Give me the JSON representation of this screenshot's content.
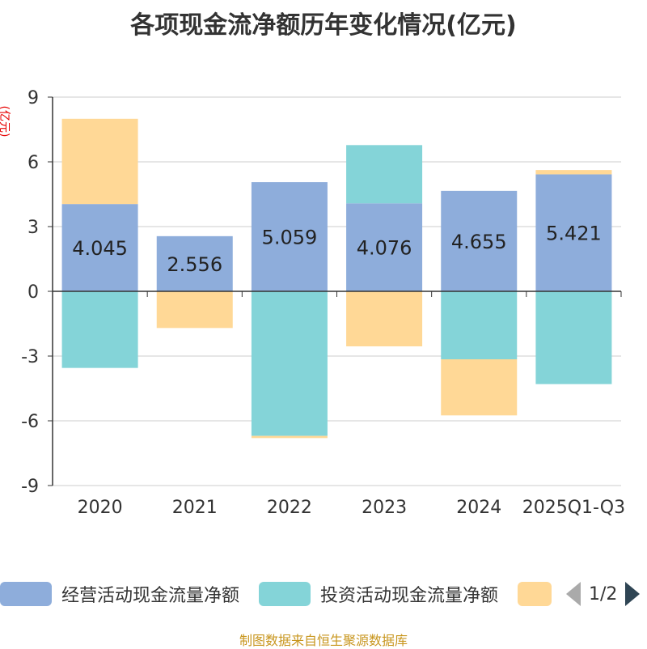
{
  "chart_data": {
    "type": "bar",
    "stacked": true,
    "title": "各项现金流净额历年变化情况(亿元)",
    "ylabel": "(亿元)",
    "xlabel": "",
    "ylim": [
      -9,
      9
    ],
    "yticks": [
      -9,
      -6,
      -3,
      0,
      3,
      6,
      9
    ],
    "ytick_labels": [
      "-9",
      "-6",
      "-3",
      "0",
      "3",
      "6",
      "9"
    ],
    "categories": [
      "2020",
      "2021",
      "2022",
      "2023",
      "2024",
      "2025Q1-Q3"
    ],
    "series": [
      {
        "name": "经营活动现金流量净额",
        "color": "#8eaddb",
        "values": [
          4.045,
          2.556,
          5.059,
          4.076,
          4.655,
          5.421
        ],
        "labels": [
          "4.045",
          "2.556",
          "5.059",
          "4.076",
          "4.655",
          "5.421"
        ]
      },
      {
        "name": "投资活动现金流量净额",
        "color": "#84d4d8",
        "values": [
          -3.55,
          0,
          -6.7,
          2.7,
          -3.15,
          -4.3
        ]
      },
      {
        "name": "",
        "color": "#ffd896",
        "values": [
          3.95,
          -1.7,
          -0.1,
          -2.55,
          -2.6,
          0.2
        ]
      }
    ],
    "legend": {
      "position": "bottom",
      "page": "1/2"
    }
  },
  "source": "制图数据来自恒生聚源数据库"
}
